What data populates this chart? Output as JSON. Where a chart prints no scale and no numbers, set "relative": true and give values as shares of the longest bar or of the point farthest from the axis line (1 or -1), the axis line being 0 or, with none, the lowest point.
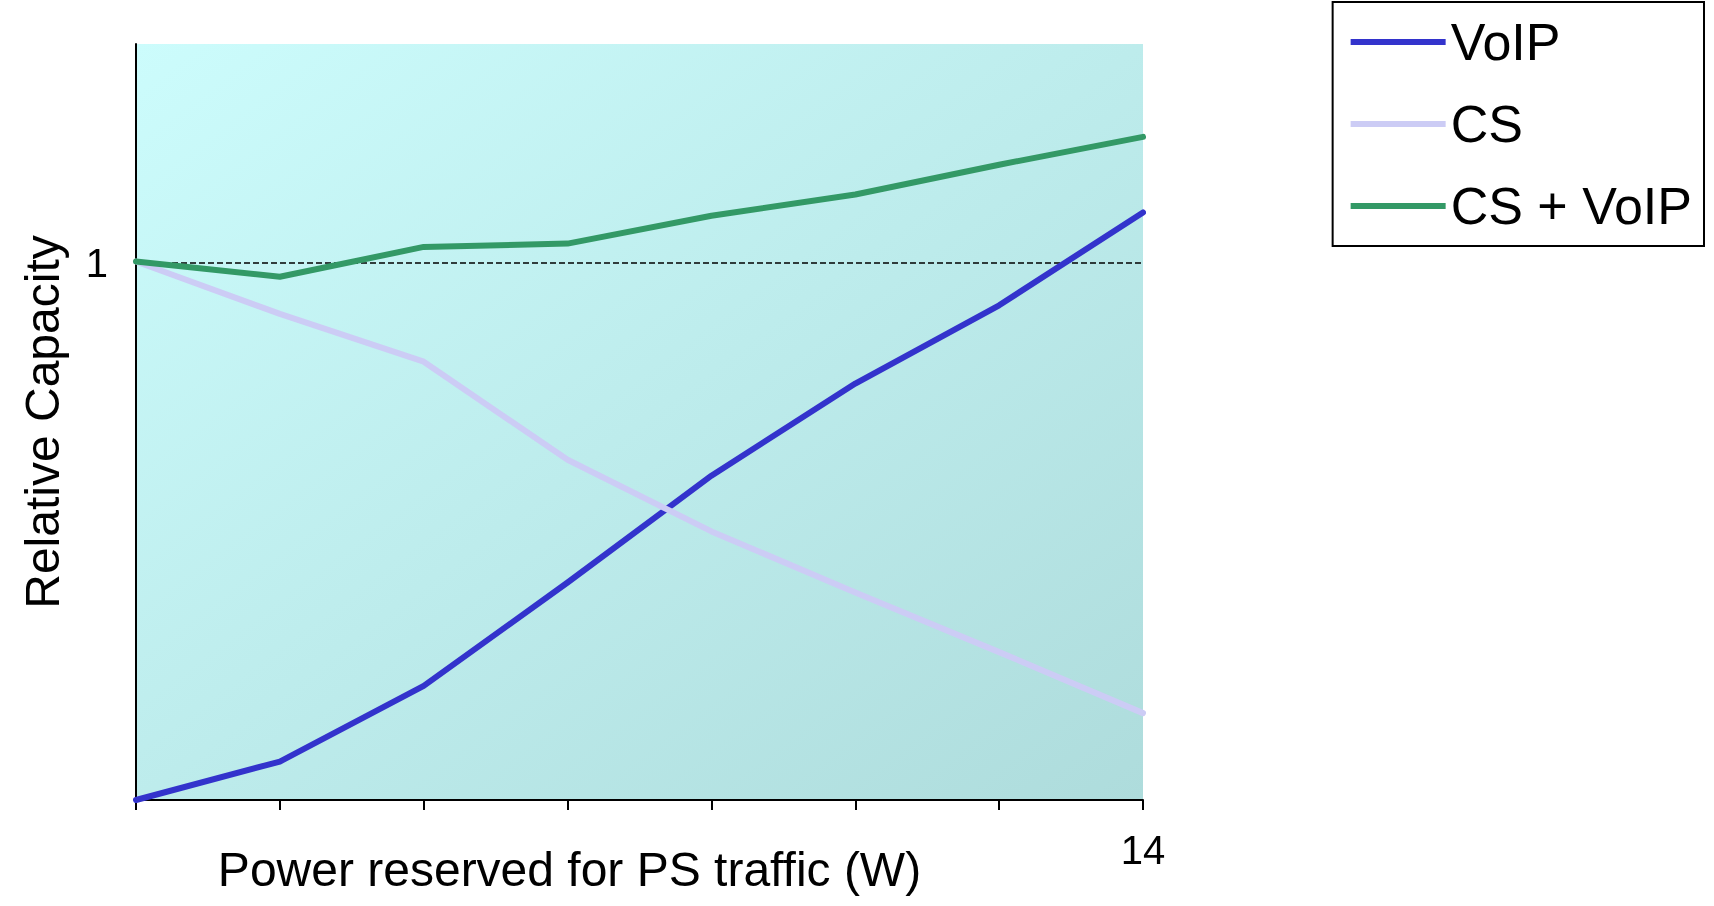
{
  "chart_data": {
    "type": "line",
    "relative": true,
    "xlabel": "Power reserved for PS traffic (W)",
    "ylabel": "Relative Capacity",
    "categories": [
      null,
      null,
      null,
      null,
      null,
      null,
      null,
      null
    ],
    "annotations": [
      "14"
    ],
    "series": [
      {
        "name": "VoIP",
        "color": "#3333cc",
        "values": [
          0,
          0.058,
          0.172,
          0.328,
          0.489,
          0.628,
          0.746,
          0.886
        ]
      },
      {
        "name": "CS",
        "color": "#ccccf5",
        "values": [
          0.812,
          0.733,
          0.661,
          0.513,
          0.405,
          0.313,
          0.223,
          0.131
        ]
      },
      {
        "name": "CS + VoIP",
        "color": "#339966",
        "values": [
          0.812,
          0.789,
          0.834,
          0.839,
          0.881,
          0.913,
          0.958,
          1
        ]
      }
    ],
    "ref_lines": [
      {
        "axis": "y",
        "value": 0.812,
        "label": "1",
        "color": "#000000",
        "line_style": "dashed"
      }
    ],
    "legend": "top right",
    "marker": "none",
    "line_style": "solid"
  }
}
